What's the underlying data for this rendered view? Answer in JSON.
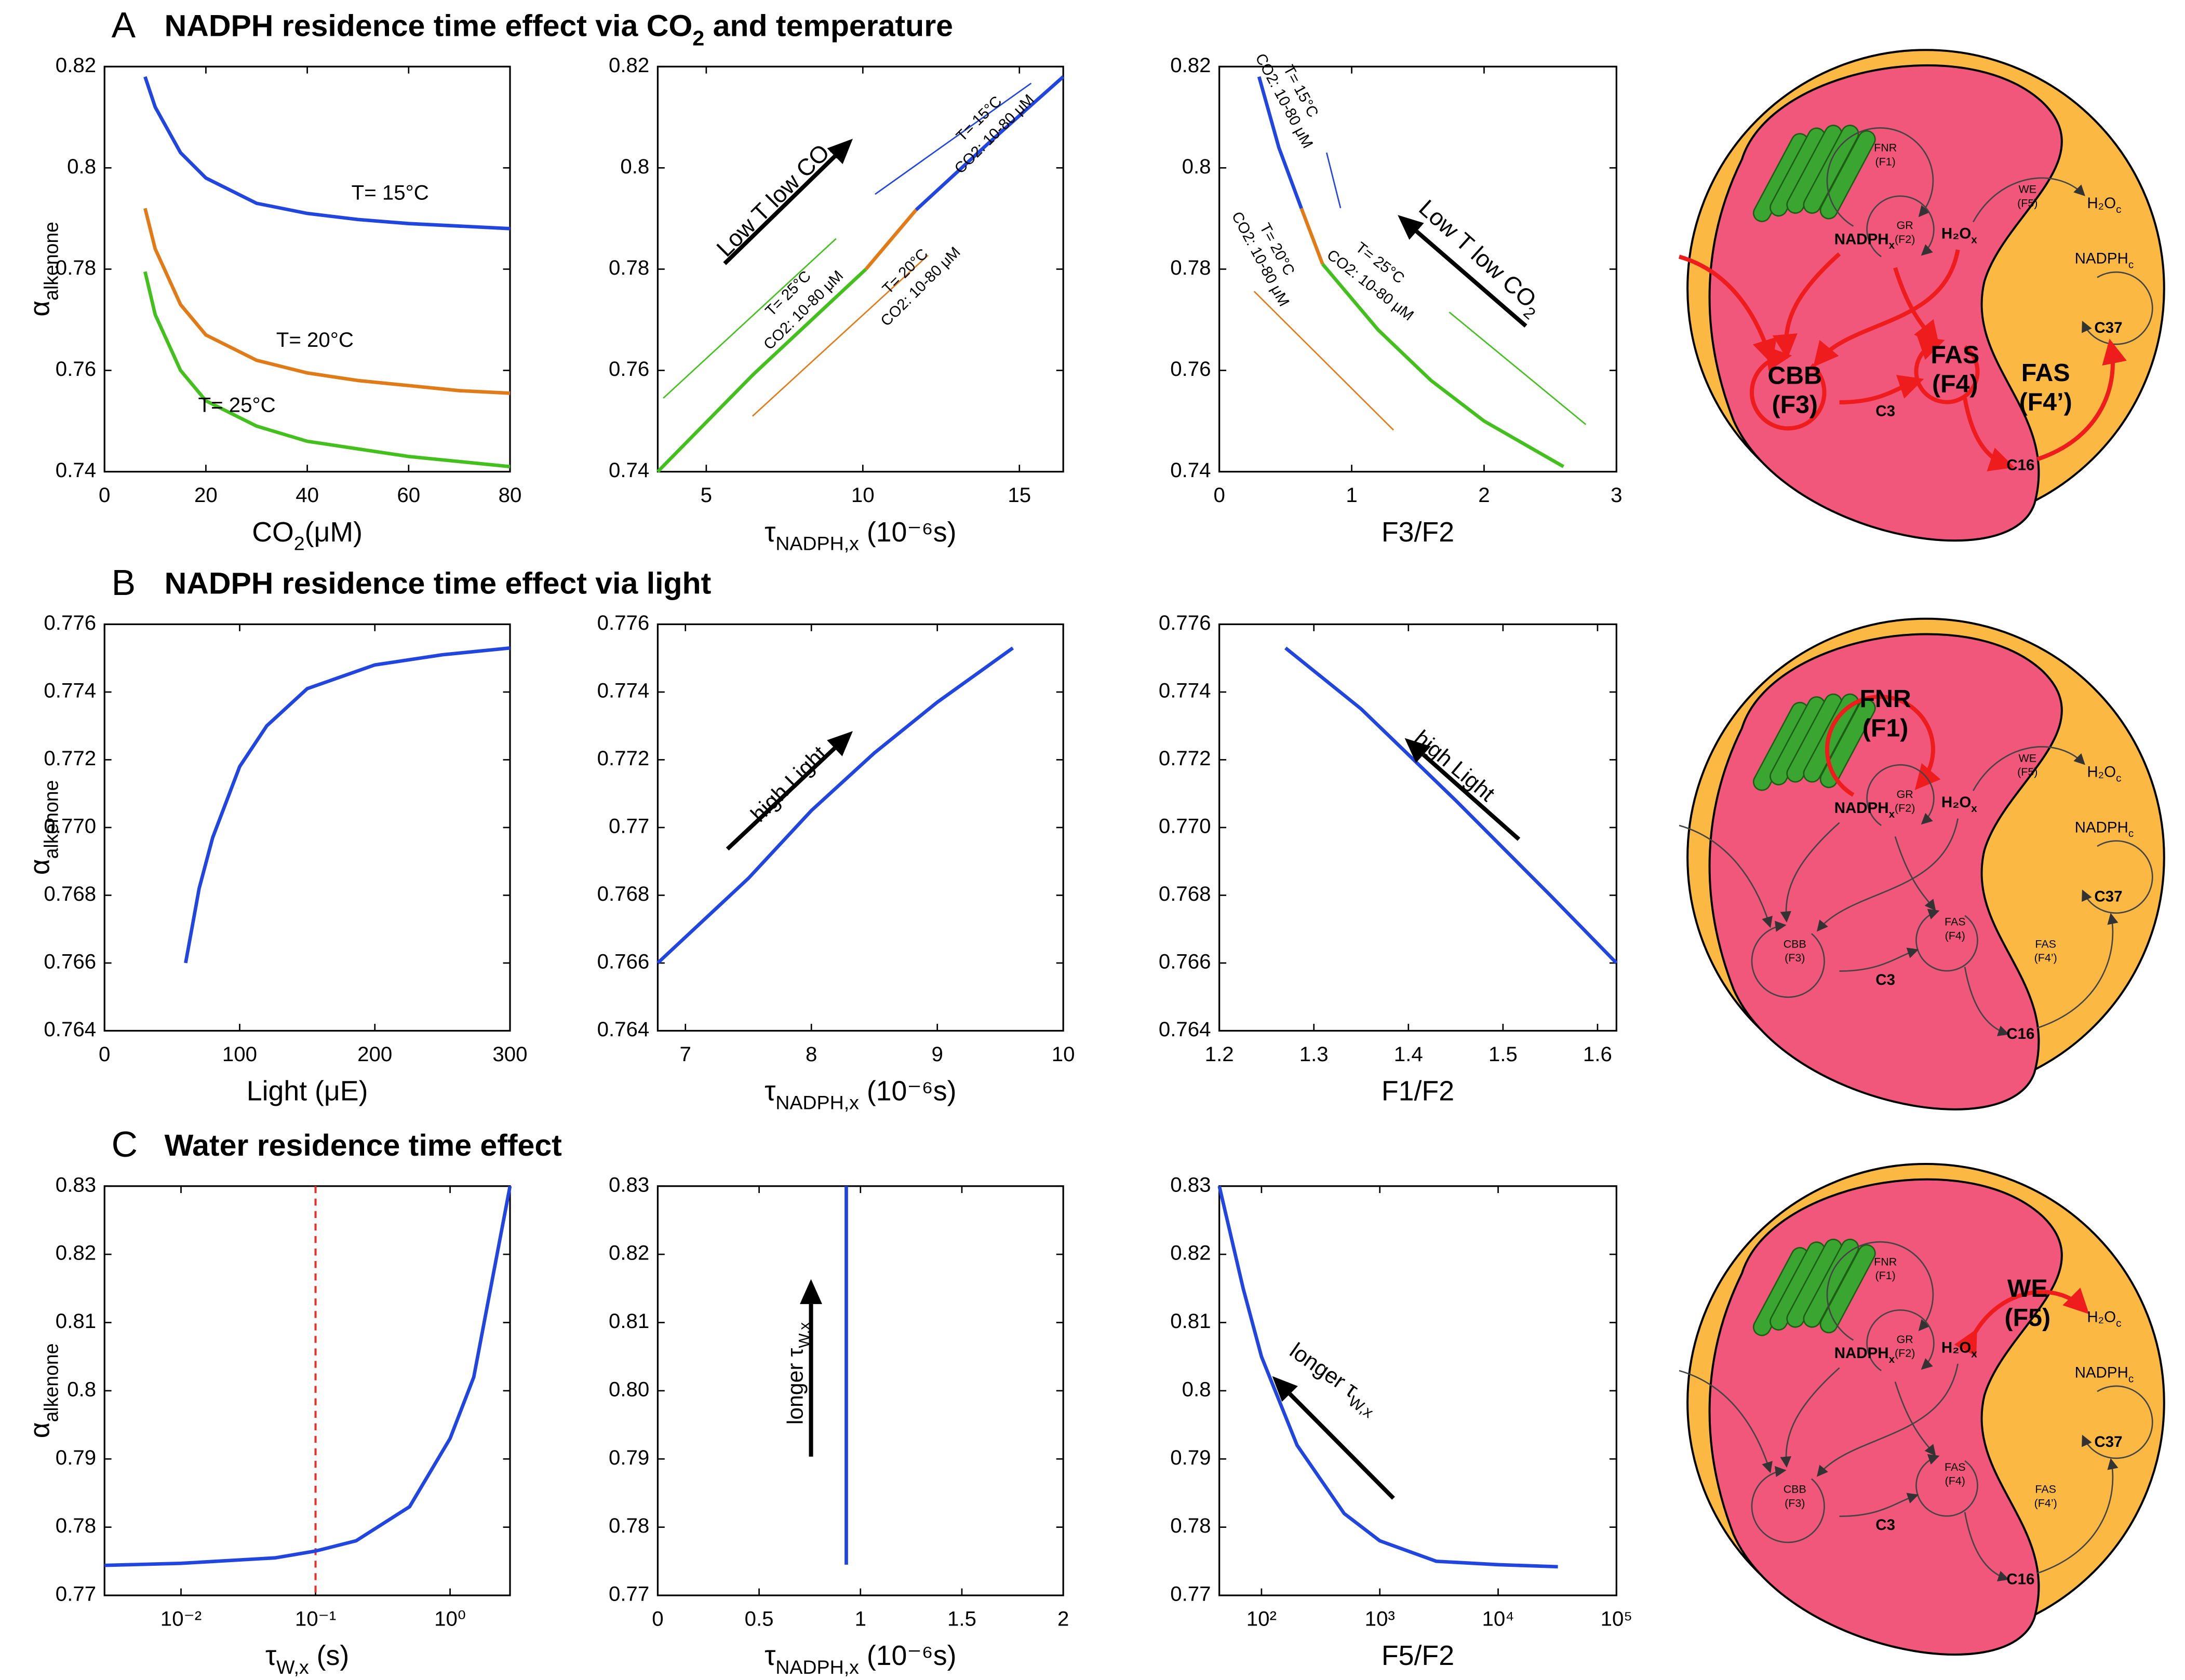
{
  "panels": [
    {
      "label": "A",
      "title": [
        {
          "text": "NADPH residence time effect via CO"
        },
        {
          "text": "2",
          "sub": true
        },
        {
          "text": " and temperature"
        }
      ]
    },
    {
      "label": "B",
      "title": [
        {
          "text": "NADPH residence time effect via light"
        }
      ]
    },
    {
      "label": "C",
      "title": [
        {
          "text": "Water residence time effect"
        }
      ]
    }
  ],
  "chart_data": [
    {
      "type": "line",
      "xlabel": [
        {
          "text": "CO"
        },
        {
          "text": "2",
          "sub": true
        },
        {
          "text": "(μM)"
        }
      ],
      "ylabel": [
        {
          "text": "α"
        },
        {
          "text": "alkenone",
          "sub": true
        }
      ],
      "xlim": [
        0,
        80
      ],
      "xticks": [
        0,
        20,
        40,
        60,
        80
      ],
      "ylim": [
        0.74,
        0.82
      ],
      "yticks": [
        0.74,
        0.76,
        0.78,
        0.8,
        0.82
      ],
      "series": [
        {
          "name": "T= 15°C",
          "color": "#2146e0",
          "x": [
            8,
            10,
            15,
            20,
            30,
            40,
            50,
            60,
            70,
            80
          ],
          "values": [
            0.818,
            0.812,
            0.803,
            0.798,
            0.793,
            0.791,
            0.7898,
            0.789,
            0.7885,
            0.788
          ]
        },
        {
          "name": "T= 20°C",
          "color": "#e07b18",
          "x": [
            8,
            10,
            15,
            20,
            30,
            40,
            50,
            60,
            70,
            80
          ],
          "values": [
            0.792,
            0.784,
            0.773,
            0.767,
            0.762,
            0.7595,
            0.758,
            0.757,
            0.756,
            0.7555
          ]
        },
        {
          "name": "T= 25°C",
          "color": "#44c01e",
          "x": [
            8,
            10,
            15,
            20,
            30,
            40,
            50,
            60,
            70,
            80
          ],
          "values": [
            0.7795,
            0.771,
            0.76,
            0.754,
            0.749,
            0.746,
            0.7445,
            0.743,
            0.742,
            0.741
          ]
        }
      ]
    },
    {
      "type": "line",
      "xlabel": [
        {
          "text": "τ"
        },
        {
          "text": "NADPH,x",
          "sub": true
        },
        {
          "text": " (10⁻⁶s)"
        }
      ],
      "xlim": [
        3.45,
        16.4
      ],
      "xticks": [
        5,
        10,
        15
      ],
      "ylim": [
        0.74,
        0.82
      ],
      "yticks": [
        0.74,
        0.76,
        0.78,
        0.8,
        0.82
      ],
      "series": [
        {
          "color": "#44c01e",
          "x": [
            3.45,
            6.5,
            10.1
          ],
          "values": [
            0.74,
            0.7592,
            0.78
          ]
        },
        {
          "color": "#e07b18",
          "x": [
            10.1,
            11.7
          ],
          "values": [
            0.78,
            0.7917
          ]
        },
        {
          "color": "#2146e0",
          "x": [
            11.7,
            14,
            16.4
          ],
          "values": [
            0.7917,
            0.8048,
            0.818
          ]
        }
      ],
      "annotations": [
        {
          "parts": [
            {
              "text": "T= 15°C"
            }
          ],
          "color": "#2146e0"
        },
        {
          "parts": [
            {
              "text": "CO2: 10-80 μM"
            }
          ],
          "color": "#2146e0"
        },
        {
          "parts": [
            {
              "text": "T= 20°C"
            }
          ],
          "color": "#e07b18"
        },
        {
          "parts": [
            {
              "text": "CO2: 10-80 μM"
            }
          ],
          "color": "#e07b18"
        },
        {
          "parts": [
            {
              "text": "T= 25°C"
            }
          ],
          "color": "#44c01e"
        },
        {
          "parts": [
            {
              "text": "CO2: 10-80 μM"
            }
          ],
          "color": "#44c01e"
        },
        {
          "parts": [
            {
              "text": "Low T low CO"
            },
            {
              "text": "2",
              "sub": true
            }
          ],
          "color": "#000000"
        }
      ]
    },
    {
      "type": "line",
      "xlabel": [
        {
          "text": "F3/F2"
        }
      ],
      "xlim": [
        0,
        3
      ],
      "xticks": [
        0,
        1,
        2,
        3
      ],
      "ylim": [
        0.74,
        0.82
      ],
      "yticks": [
        0.74,
        0.76,
        0.78,
        0.8,
        0.82
      ],
      "series": [
        {
          "color": "#2146e0",
          "x": [
            0.3,
            0.45,
            0.62
          ],
          "values": [
            0.818,
            0.804,
            0.792
          ]
        },
        {
          "color": "#e07b18",
          "x": [
            0.62,
            0.78
          ],
          "values": [
            0.792,
            0.781
          ]
        },
        {
          "color": "#44c01e",
          "x": [
            0.78,
            1.2,
            1.6,
            2.0,
            2.6
          ],
          "values": [
            0.781,
            0.768,
            0.758,
            0.75,
            0.741
          ]
        }
      ],
      "annotations": [
        {
          "parts": [
            {
              "text": "T= 15°C"
            }
          ],
          "color": "#2146e0"
        },
        {
          "parts": [
            {
              "text": "CO2: 10-80 μM"
            }
          ],
          "color": "#2146e0"
        },
        {
          "parts": [
            {
              "text": "T= 20°C"
            }
          ],
          "color": "#e07b18"
        },
        {
          "parts": [
            {
              "text": "CO2: 10-80 μM"
            }
          ],
          "color": "#e07b18"
        },
        {
          "parts": [
            {
              "text": "T= 25°C"
            }
          ],
          "color": "#44c01e"
        },
        {
          "parts": [
            {
              "text": "CO2: 10-80 μM"
            }
          ],
          "color": "#44c01e"
        },
        {
          "parts": [
            {
              "text": "Low T low CO"
            },
            {
              "text": "2",
              "sub": true
            }
          ],
          "color": "#000000"
        }
      ]
    },
    {
      "type": "line",
      "xlabel": [
        {
          "text": "Light (μE)"
        }
      ],
      "ylabel": [
        {
          "text": "α"
        },
        {
          "text": "alkenone",
          "sub": true
        }
      ],
      "xlim": [
        0,
        300
      ],
      "xticks": [
        0,
        100,
        200,
        300
      ],
      "ylim": [
        0.764,
        0.776
      ],
      "yticks": [
        0.764,
        0.766,
        0.768,
        {
          "value": 0.77,
          "label": "0.770"
        },
        0.772,
        0.774,
        0.776
      ],
      "series": [
        {
          "color": "#2146e0",
          "x": [
            60,
            70,
            80,
            100,
            120,
            150,
            200,
            250,
            300
          ],
          "values": [
            0.766,
            0.7682,
            0.7697,
            0.7718,
            0.773,
            0.7741,
            0.7748,
            0.7751,
            0.7753
          ]
        }
      ]
    },
    {
      "type": "line",
      "xlabel": [
        {
          "text": "τ"
        },
        {
          "text": "NADPH,x",
          "sub": true
        },
        {
          "text": " (10⁻⁶s)"
        }
      ],
      "xlim": [
        6.78,
        10
      ],
      "xticks": [
        7,
        8,
        9,
        10
      ],
      "ylim": [
        0.764,
        0.776
      ],
      "yticks": [
        0.764,
        0.766,
        0.768,
        0.77,
        0.772,
        0.774,
        0.776
      ],
      "series": [
        {
          "color": "#2146e0",
          "x": [
            6.78,
            7.5,
            8,
            8.5,
            9,
            9.6
          ],
          "values": [
            0.766,
            0.7685,
            0.7705,
            0.7722,
            0.7737,
            0.7753
          ]
        }
      ],
      "annotations": [
        {
          "parts": [
            {
              "text": "high Light"
            }
          ],
          "color": "#000000"
        }
      ]
    },
    {
      "type": "line",
      "xlabel": [
        {
          "text": "F1/F2"
        }
      ],
      "xlim": [
        1.2,
        1.62
      ],
      "xticks": [
        1.2,
        1.3,
        1.4,
        1.5,
        1.6
      ],
      "ylim": [
        0.764,
        0.776
      ],
      "yticks": [
        0.764,
        0.766,
        0.768,
        {
          "value": 0.77,
          "label": "0.770"
        },
        0.772,
        0.774,
        0.776
      ],
      "series": [
        {
          "color": "#2146e0",
          "x": [
            1.27,
            1.35,
            1.45,
            1.55,
            1.62
          ],
          "values": [
            0.7753,
            0.7735,
            0.7708,
            0.768,
            0.766
          ]
        }
      ],
      "annotations": [
        {
          "parts": [
            {
              "text": "high Light"
            }
          ],
          "color": "#000000"
        }
      ]
    },
    {
      "type": "line",
      "xscale": "log",
      "xlabel": [
        {
          "text": "τ"
        },
        {
          "text": "W,x",
          "sub": true
        },
        {
          "text": " (s)"
        }
      ],
      "ylabel": [
        {
          "text": "α"
        },
        {
          "text": "alkenone",
          "sub": true
        }
      ],
      "xlim": [
        0.0027,
        2.79
      ],
      "xticks": [
        {
          "value": 0.01,
          "label": "10⁻²"
        },
        {
          "value": 0.1,
          "label": "10⁻¹"
        },
        {
          "value": 1,
          "label": "10⁰"
        }
      ],
      "ylim": [
        0.77,
        0.83
      ],
      "yticks": [
        0.77,
        0.78,
        0.79,
        0.8,
        0.81,
        0.82,
        0.83
      ],
      "vline": {
        "value": 0.1,
        "color": "#e8302a"
      },
      "series": [
        {
          "color": "#2146e0",
          "x": [
            0.0027,
            0.01,
            0.05,
            0.1,
            0.2,
            0.5,
            1,
            1.5,
            2.79
          ],
          "values": [
            0.7744,
            0.7747,
            0.7755,
            0.7765,
            0.778,
            0.783,
            0.793,
            0.802,
            0.83
          ]
        }
      ]
    },
    {
      "type": "line",
      "xlabel": [
        {
          "text": "τ"
        },
        {
          "text": "NADPH,x",
          "sub": true
        },
        {
          "text": " (10⁻⁶s)"
        }
      ],
      "xlim": [
        0,
        2
      ],
      "xticks": [
        0,
        0.5,
        1,
        1.5,
        2
      ],
      "ylim": [
        0.77,
        0.83
      ],
      "yticks": [
        0.77,
        0.78,
        0.79,
        {
          "value": 0.8,
          "label": "0.80"
        },
        0.81,
        0.82,
        0.83
      ],
      "series": [
        {
          "color": "#2146e0",
          "x": [
            0.93,
            0.93
          ],
          "values": [
            0.7745,
            0.83
          ]
        }
      ],
      "annotations": [
        {
          "parts": [
            {
              "text": "longer τ"
            },
            {
              "text": "W,x",
              "sub": true
            }
          ],
          "color": "#000000"
        }
      ]
    },
    {
      "type": "line",
      "xscale": "log",
      "xlabel": [
        {
          "text": "F5/F2"
        }
      ],
      "xlim": [
        44,
        100000
      ],
      "xticks": [
        {
          "value": 100,
          "label": "10²"
        },
        {
          "value": 1000,
          "label": "10³"
        },
        {
          "value": 10000,
          "label": "10⁴"
        },
        {
          "value": 100000,
          "label": "10⁵"
        }
      ],
      "ylim": [
        0.77,
        0.83
      ],
      "yticks": [
        0.77,
        0.78,
        0.79,
        0.8,
        0.81,
        0.82,
        0.83
      ],
      "series": [
        {
          "color": "#2146e0",
          "x": [
            44,
            70,
            100,
            200,
            500,
            1000,
            3000,
            10000,
            32000
          ],
          "values": [
            0.83,
            0.815,
            0.805,
            0.792,
            0.782,
            0.778,
            0.775,
            0.7745,
            0.7742
          ]
        }
      ],
      "annotations": [
        {
          "parts": [
            {
              "text": "longer τ"
            },
            {
              "text": "W,x",
              "sub": true
            }
          ],
          "color": "#000000"
        }
      ]
    }
  ],
  "diagram_labels": {
    "fnr": "FNR",
    "f1": "(F1)",
    "gr": "GR",
    "f2": "(F2)",
    "we": "WE",
    "f5": "(F5)",
    "cbb": "CBB",
    "f3": "(F3)",
    "fas": "FAS",
    "f4": "(F4)",
    "f4p": "(F4’)",
    "h2o": "H₂O",
    "x": "x",
    "c": "c",
    "nadph": "NADPH",
    "c3": "C3",
    "c37": "C37",
    "c16": "C16"
  },
  "diagrams": [
    {
      "highlight": [
        "cbb",
        "fas",
        "fasp"
      ]
    },
    {
      "highlight": [
        "fnr"
      ]
    },
    {
      "highlight": [
        "we"
      ]
    }
  ]
}
